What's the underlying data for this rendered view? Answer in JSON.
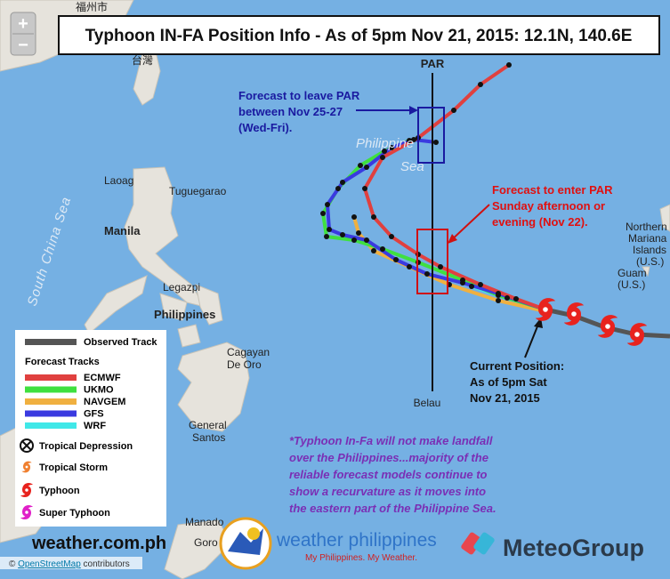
{
  "title": "Typhoon IN-FA Position Info - As of 5pm Nov 21, 2015: 12.1N, 140.6E",
  "zoom": {
    "in": "+",
    "out": "−"
  },
  "par": {
    "label": "PAR",
    "bottom_label": "Belau"
  },
  "places": {
    "fuzhou": "福州市",
    "taiwan": "台灣",
    "laoag": "Laoag",
    "tuguegarao": "Tuguegarao",
    "manila": "Manila",
    "legazpi": "Legazpi",
    "philippines": "Philippines",
    "cagayan": [
      "Cagayan",
      "De Oro"
    ],
    "gensan": [
      "General",
      "Santos"
    ],
    "manado": "Manado",
    "gorontalo": "Goro",
    "mariana": [
      "Northern",
      "Mariana",
      "Islands",
      "(U.S.)"
    ],
    "guam": [
      "Guam",
      "(U.S.)"
    ],
    "south_china_sea": "South China Sea",
    "philippine_sea": [
      "Philippine",
      "Sea"
    ]
  },
  "annotations": {
    "leave_par": [
      "Forecast to leave PAR",
      "between Nov 25-27",
      "(Wed-Fri)."
    ],
    "enter_par": [
      "Forecast to enter PAR",
      "Sunday afternoon or",
      "evening (Nov 22)."
    ],
    "current_position": [
      "Current Position:",
      "As of 5pm Sat",
      "Nov 21, 2015"
    ],
    "note": [
      "*Typhoon In-Fa will not make landfall",
      "over the Philippines...majority of the",
      "reliable forecast models continue  to",
      "show a recurvature as it moves into",
      "the eastern part of the Philippine Sea."
    ]
  },
  "legend": {
    "observed": {
      "label": "Observed Track",
      "color": "#555555"
    },
    "forecast_title": "Forecast Tracks",
    "forecast_tracks": [
      {
        "label": "ECMWF",
        "color": "#e0403f"
      },
      {
        "label": "UKMO",
        "color": "#3fe03f"
      },
      {
        "label": "NAVGEM",
        "color": "#f0b040"
      },
      {
        "label": "GFS",
        "color": "#3a3ae0"
      },
      {
        "label": "WRF",
        "color": "#40e8e8"
      }
    ],
    "categories": [
      "Tropical Depression",
      "Tropical Storm",
      "Typhoon",
      "Super Typhoon"
    ]
  },
  "footer": {
    "site": "weather.com.ph",
    "brand": "weather philippines",
    "tagline": "My Philippines. My Weather.",
    "partner": "MeteoGroup",
    "attribution": {
      "symbol": "©",
      "link": "OpenStreetMap",
      "rest": "contributors"
    }
  }
}
